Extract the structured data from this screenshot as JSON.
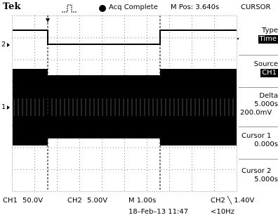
{
  "header": {
    "brand": "Tek",
    "status": "Acq Complete",
    "position": "M Pos: 3.640s",
    "menu_title": "CURSOR"
  },
  "menu": [
    {
      "label": "Type",
      "value": "Time"
    },
    {
      "label": "Source",
      "value": "CH1"
    },
    {
      "label": "Delta",
      "value": "5.000s",
      "extra": "200.0mV"
    },
    {
      "label": "Cursor 1",
      "value": "0.000s"
    },
    {
      "label": "Cursor 2",
      "value": "5.000s"
    }
  ],
  "markers": {
    "ch2": "2",
    "ch1": "1"
  },
  "footer": {
    "ch1": "CH1",
    "ch1_scale": "50.0V",
    "ch2": "CH2",
    "ch2_scale": "5.00V",
    "timebase": "M 1.00s",
    "trigger": "CH2 ╲ 1.40V",
    "date": "18–Feb–13 11:47",
    "freq": "<10Hz"
  }
}
